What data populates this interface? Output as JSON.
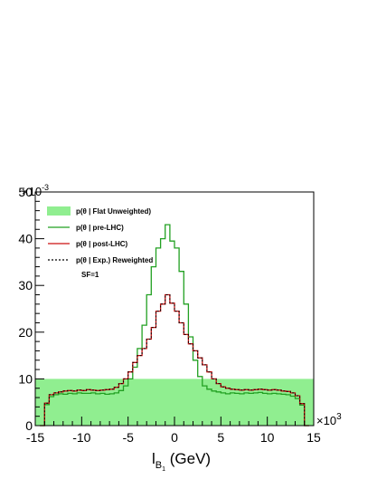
{
  "chart_data": {
    "type": "histogram",
    "xlabel": {
      "main": "l",
      "sub": "B",
      "subsub": "1",
      "unit": " (GeV)"
    },
    "x_multiplier": {
      "base": "×10",
      "exp": "3"
    },
    "y_multiplier": {
      "base": "×10",
      "exp": "-3"
    },
    "xlim": [
      -15000,
      15000
    ],
    "ylim": [
      0,
      0.05
    ],
    "x_ticks": [
      {
        "value": -15000,
        "label": "-15"
      },
      {
        "value": -10000,
        "label": "-10"
      },
      {
        "value": -5000,
        "label": "-5"
      },
      {
        "value": 0,
        "label": "0"
      },
      {
        "value": 5000,
        "label": "5"
      },
      {
        "value": 10000,
        "label": "10"
      },
      {
        "value": 15000,
        "label": "15"
      }
    ],
    "y_ticks": [
      {
        "value": 0,
        "label": "0"
      },
      {
        "value": 0.01,
        "label": "10"
      },
      {
        "value": 0.02,
        "label": "20"
      },
      {
        "value": 0.03,
        "label": "30"
      },
      {
        "value": 0.04,
        "label": "40"
      },
      {
        "value": 0.05,
        "label": "50"
      }
    ],
    "bin_width": 500,
    "series": [
      {
        "name": "p(θ | Flat Unweighted)",
        "style": "fill",
        "color": "#90ee90",
        "x_range": [
          -15000,
          15000
        ],
        "value": 0.01
      },
      {
        "name": "p(θ | pre-LHC)",
        "style": "step",
        "color": "#22a022",
        "bin_start": -14500,
        "values": [
          0,
          0.0045,
          0.0062,
          0.0066,
          0.0068,
          0.0067,
          0.0069,
          0.0068,
          0.007,
          0.0069,
          0.0069,
          0.007,
          0.0068,
          0.0069,
          0.0067,
          0.0068,
          0.007,
          0.0075,
          0.0085,
          0.01,
          0.0125,
          0.0165,
          0.0215,
          0.028,
          0.034,
          0.038,
          0.04,
          0.043,
          0.0395,
          0.038,
          0.033,
          0.026,
          0.019,
          0.014,
          0.0105,
          0.0085,
          0.0078,
          0.0074,
          0.0072,
          0.007,
          0.0068,
          0.007,
          0.0069,
          0.0068,
          0.007,
          0.0069,
          0.007,
          0.0071,
          0.0069,
          0.0068,
          0.0069,
          0.0068,
          0.0067,
          0.0066,
          0.0063,
          0.0058,
          0.0044,
          0
        ]
      },
      {
        "name": "p(θ | post-LHC)",
        "style": "step",
        "color": "#cc1111",
        "bin_start": -14500,
        "values": [
          0,
          0.0048,
          0.0066,
          0.007,
          0.0072,
          0.0074,
          0.0075,
          0.0074,
          0.0076,
          0.0075,
          0.0077,
          0.0076,
          0.0075,
          0.0076,
          0.0077,
          0.0078,
          0.0082,
          0.009,
          0.01,
          0.0115,
          0.0135,
          0.015,
          0.0165,
          0.0185,
          0.021,
          0.0245,
          0.026,
          0.028,
          0.0262,
          0.0245,
          0.022,
          0.0195,
          0.0175,
          0.016,
          0.0145,
          0.013,
          0.0115,
          0.01,
          0.009,
          0.0083,
          0.008,
          0.0078,
          0.0077,
          0.0076,
          0.0077,
          0.0076,
          0.0077,
          0.0078,
          0.0077,
          0.0076,
          0.0077,
          0.0076,
          0.0074,
          0.0073,
          0.007,
          0.0064,
          0.0047,
          0
        ]
      },
      {
        "name": "p(θ | Exp.) Reweighted",
        "style": "dashed",
        "color": "#000000",
        "same_as": "p(θ | post-LHC)"
      }
    ],
    "legend_extra": "SF=1",
    "legend_position": "top-left"
  }
}
